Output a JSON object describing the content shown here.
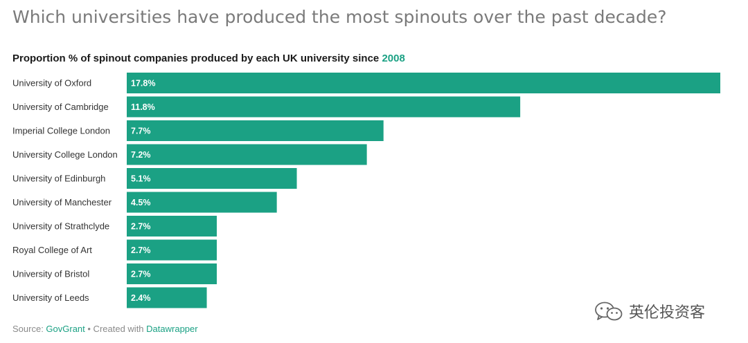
{
  "headline": "Which universities have produced the most spinouts over the past decade?",
  "subtitle": {
    "text": "Proportion % of spinout companies produced by each UK university since ",
    "year": "2008"
  },
  "footer": {
    "source_label": "Source: ",
    "source_link": "GovGrant",
    "separator": " • Created with ",
    "tool_link": "Datawrapper"
  },
  "watermark": {
    "text": "英伦投资客",
    "icon": "wechat-icon"
  },
  "colors": {
    "bar": "#1ba184",
    "accent": "#1ba184",
    "value_text": "#ffffff"
  },
  "chart_data": {
    "type": "bar",
    "orientation": "horizontal",
    "title": "Proportion % of spinout companies produced by each UK university since 2008",
    "categories": [
      "University of Oxford",
      "University of Cambridge",
      "Imperial College London",
      "University College London",
      "University of Edinburgh",
      "University of Manchester",
      "University of Strathclyde",
      "Royal College of Art",
      "University of Bristol",
      "University of Leeds"
    ],
    "values": [
      17.8,
      11.8,
      7.7,
      7.2,
      5.1,
      4.5,
      2.7,
      2.7,
      2.7,
      2.4
    ],
    "value_labels": [
      "17.8%",
      "11.8%",
      "7.7%",
      "7.2%",
      "5.1%",
      "4.5%",
      "2.7%",
      "2.7%",
      "2.7%",
      "2.4%"
    ],
    "xlim": [
      0,
      17.8
    ],
    "grid": false,
    "legend": "none"
  }
}
